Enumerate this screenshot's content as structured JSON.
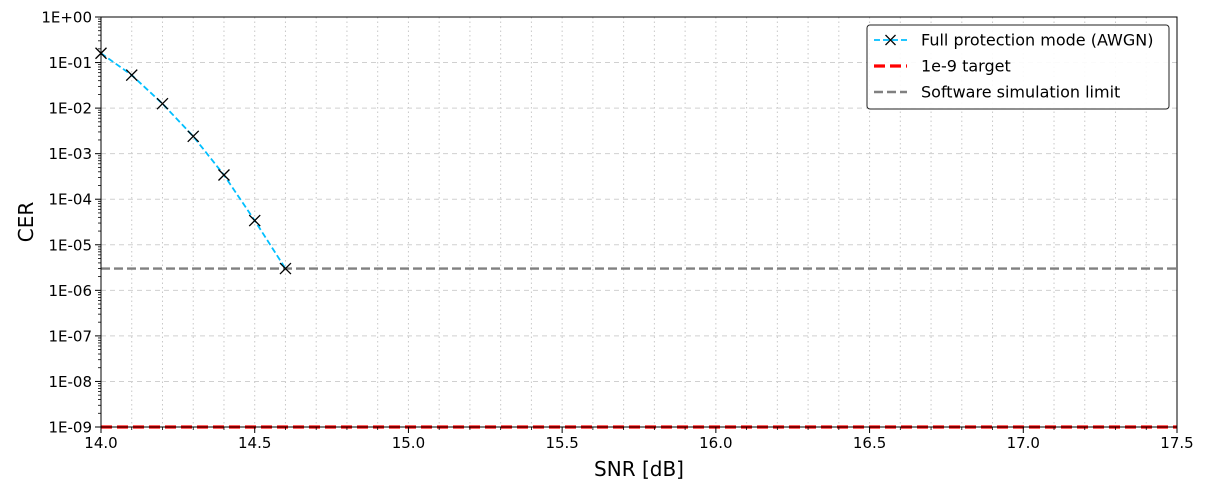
{
  "chart_data": {
    "type": "line",
    "title": "",
    "xlabel": "SNR [dB]",
    "ylabel": "CER",
    "xlim": [
      14.0,
      17.5
    ],
    "ylim": [
      1e-09,
      1
    ],
    "yscale": "log",
    "grid": true,
    "legend_position": "top-right",
    "x_ticks": [
      "14.0",
      "14.5",
      "15.0",
      "15.5",
      "16.0",
      "16.5",
      "17.0",
      "17.5"
    ],
    "y_ticks": [
      "1E-09",
      "1E-08",
      "1E-07",
      "1E-06",
      "1E-05",
      "1E-04",
      "1E-03",
      "1E-02",
      "1E-01",
      "1E+00"
    ],
    "series": [
      {
        "name": "Full protection mode (AWGN)",
        "color": "#00bfff",
        "style": "dashed",
        "marker": "x",
        "x": [
          14.0,
          14.1,
          14.2,
          14.3,
          14.4,
          14.5,
          14.6
        ],
        "y": [
          0.16,
          0.053,
          0.0125,
          0.0024,
          0.00034,
          3.4e-05,
          3e-06
        ]
      },
      {
        "name": "1e-9 target",
        "color": "#ff0000",
        "style": "dashed",
        "type": "hline",
        "y": 1e-09
      },
      {
        "name": "Software simulation limit",
        "color": "#808080",
        "style": "dashed",
        "type": "hline",
        "y": 3e-06
      }
    ]
  }
}
